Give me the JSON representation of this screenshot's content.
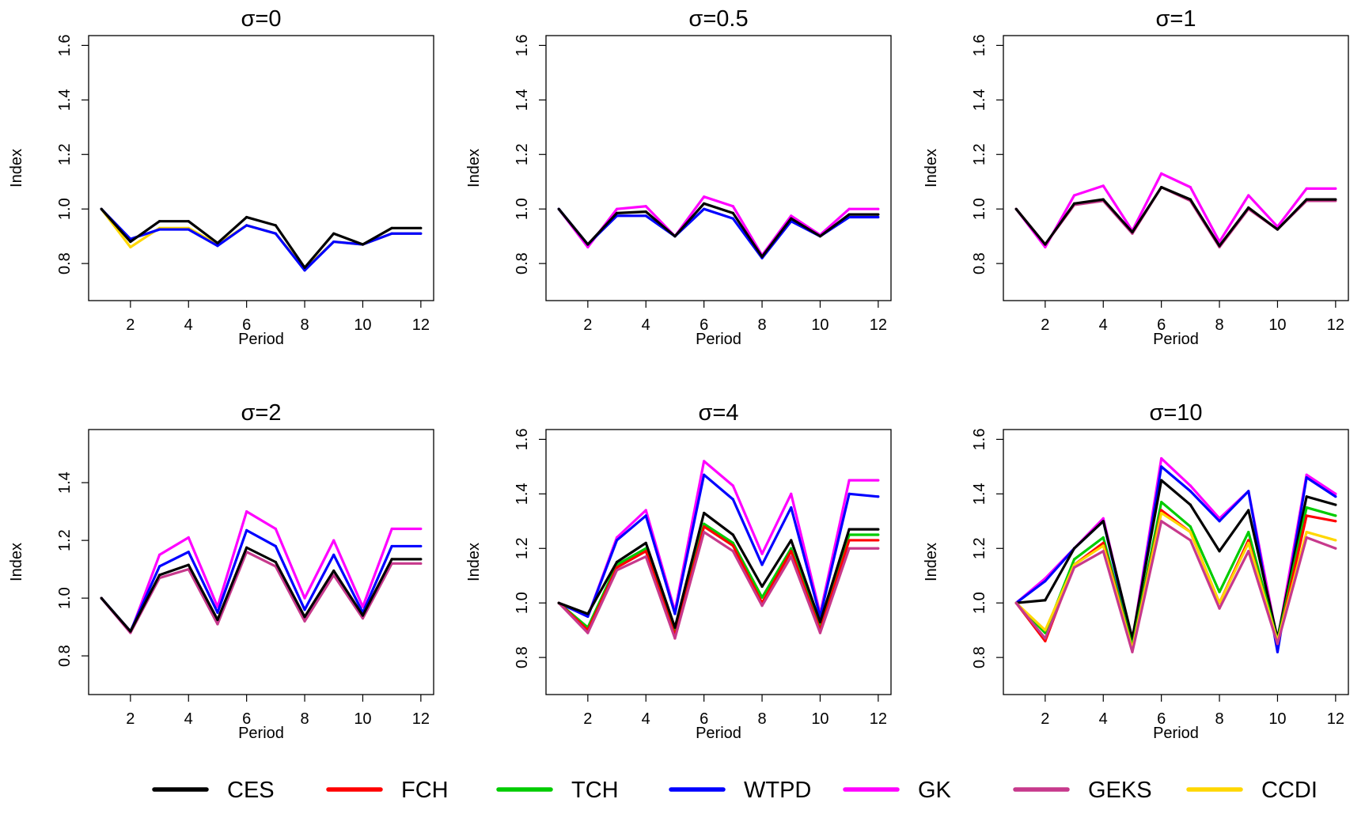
{
  "legend": {
    "placement": "bottom",
    "entries": [
      {
        "label": "CES",
        "color": "#000000"
      },
      {
        "label": "FCH",
        "color": "#ff0000"
      },
      {
        "label": "TCH",
        "color": "#00cc00"
      },
      {
        "label": "WTPD",
        "color": "#0000ff"
      },
      {
        "label": "GK",
        "color": "#ff00ff"
      },
      {
        "label": "GEKS",
        "color": "#c7398c"
      },
      {
        "label": "CCDI",
        "color": "#ffd700"
      }
    ]
  },
  "chart_data": [
    {
      "type": "line",
      "title": "σ=0",
      "xlabel": "Period",
      "ylabel": "Index",
      "xlim": [
        1,
        12
      ],
      "ylim": [
        0.7,
        1.6
      ],
      "grid": false,
      "xticks": [
        2,
        4,
        6,
        8,
        10,
        12
      ],
      "yticks": [
        0.8,
        1.0,
        1.2,
        1.4,
        1.6
      ],
      "ytick_labels": [
        "0.8",
        "1.0",
        "1.2",
        "1.4",
        "1.6"
      ],
      "x": [
        1,
        2,
        3,
        4,
        5,
        6,
        7,
        8,
        9,
        10,
        11,
        12
      ],
      "series": [
        {
          "name": "CCDI",
          "color": "#ffd700",
          "values": [
            1.0,
            0.86,
            0.93,
            0.93,
            0.87,
            0.94,
            0.91,
            0.78,
            0.88,
            0.87,
            0.91,
            0.91
          ]
        },
        {
          "name": "WTPD",
          "color": "#0000ff",
          "values": [
            1.0,
            0.89,
            0.925,
            0.925,
            0.865,
            0.94,
            0.91,
            0.775,
            0.88,
            0.87,
            0.91,
            0.91
          ]
        },
        {
          "name": "CES",
          "color": "#000000",
          "values": [
            1.0,
            0.88,
            0.955,
            0.955,
            0.875,
            0.97,
            0.94,
            0.785,
            0.91,
            0.87,
            0.93,
            0.93
          ]
        }
      ]
    },
    {
      "type": "line",
      "title": "σ=0.5",
      "xlabel": "Period",
      "ylabel": "Index",
      "xlim": [
        1,
        12
      ],
      "ylim": [
        0.7,
        1.6
      ],
      "grid": false,
      "xticks": [
        2,
        4,
        6,
        8,
        10,
        12
      ],
      "yticks": [
        0.8,
        1.0,
        1.2,
        1.4,
        1.6
      ],
      "ytick_labels": [
        "0.8",
        "1.0",
        "1.2",
        "1.4",
        "1.6"
      ],
      "x": [
        1,
        2,
        3,
        4,
        5,
        6,
        7,
        8,
        9,
        10,
        11,
        12
      ],
      "series": [
        {
          "name": "GK",
          "color": "#ff00ff",
          "values": [
            1.0,
            0.86,
            1.0,
            1.01,
            0.9,
            1.045,
            1.01,
            0.83,
            0.975,
            0.905,
            1.0,
            1.0
          ]
        },
        {
          "name": "WTPD",
          "color": "#0000ff",
          "values": [
            1.0,
            0.87,
            0.975,
            0.975,
            0.9,
            1.0,
            0.965,
            0.82,
            0.955,
            0.9,
            0.97,
            0.97
          ]
        },
        {
          "name": "CES",
          "color": "#000000",
          "values": [
            1.0,
            0.87,
            0.985,
            0.99,
            0.9,
            1.02,
            0.985,
            0.825,
            0.965,
            0.9,
            0.98,
            0.98
          ]
        }
      ]
    },
    {
      "type": "line",
      "title": "σ=1",
      "xlabel": "Period",
      "ylabel": "Index",
      "xlim": [
        1,
        12
      ],
      "ylim": [
        0.7,
        1.6
      ],
      "grid": false,
      "xticks": [
        2,
        4,
        6,
        8,
        10,
        12
      ],
      "yticks": [
        0.8,
        1.0,
        1.2,
        1.4,
        1.6
      ],
      "ytick_labels": [
        "0.8",
        "1.0",
        "1.2",
        "1.4",
        "1.6"
      ],
      "x": [
        1,
        2,
        3,
        4,
        5,
        6,
        7,
        8,
        9,
        10,
        11,
        12
      ],
      "series": [
        {
          "name": "GK",
          "color": "#ff00ff",
          "values": [
            1.0,
            0.86,
            1.05,
            1.085,
            0.92,
            1.13,
            1.08,
            0.88,
            1.05,
            0.935,
            1.075,
            1.075
          ]
        },
        {
          "name": "GEKS",
          "color": "#c7398c",
          "values": [
            1.0,
            0.87,
            1.015,
            1.03,
            0.91,
            1.08,
            1.03,
            0.86,
            1.0,
            0.925,
            1.03,
            1.03
          ]
        },
        {
          "name": "CES",
          "color": "#000000",
          "values": [
            1.0,
            0.87,
            1.02,
            1.035,
            0.915,
            1.08,
            1.035,
            0.865,
            1.005,
            0.925,
            1.035,
            1.035
          ]
        }
      ]
    },
    {
      "type": "line",
      "title": "σ=2",
      "xlabel": "Period",
      "ylabel": "Index",
      "xlim": [
        1,
        12
      ],
      "ylim": [
        0.7,
        1.55
      ],
      "grid": false,
      "xticks": [
        2,
        4,
        6,
        8,
        10,
        12
      ],
      "yticks": [
        0.8,
        1.0,
        1.2,
        1.4
      ],
      "ytick_labels": [
        "0.8",
        "1.0",
        "1.2",
        "1.4"
      ],
      "x": [
        1,
        2,
        3,
        4,
        5,
        6,
        7,
        8,
        9,
        10,
        11,
        12
      ],
      "series": [
        {
          "name": "GK",
          "color": "#ff00ff",
          "values": [
            1.0,
            0.88,
            1.15,
            1.21,
            0.97,
            1.3,
            1.24,
            1.0,
            1.2,
            0.97,
            1.24,
            1.24
          ]
        },
        {
          "name": "WTPD",
          "color": "#0000ff",
          "values": [
            1.0,
            0.885,
            1.11,
            1.16,
            0.95,
            1.235,
            1.18,
            0.96,
            1.15,
            0.95,
            1.18,
            1.18
          ]
        },
        {
          "name": "GEKS",
          "color": "#c7398c",
          "values": [
            1.0,
            0.88,
            1.07,
            1.1,
            0.91,
            1.16,
            1.11,
            0.92,
            1.08,
            0.93,
            1.12,
            1.12
          ]
        },
        {
          "name": "CES",
          "color": "#000000",
          "values": [
            1.0,
            0.885,
            1.08,
            1.115,
            0.925,
            1.175,
            1.125,
            0.935,
            1.095,
            0.94,
            1.135,
            1.135
          ]
        }
      ]
    },
    {
      "type": "line",
      "title": "σ=4",
      "xlabel": "Period",
      "ylabel": "Index",
      "xlim": [
        1,
        12
      ],
      "ylim": [
        0.7,
        1.6
      ],
      "grid": false,
      "xticks": [
        2,
        4,
        6,
        8,
        10,
        12
      ],
      "yticks": [
        0.8,
        1.0,
        1.2,
        1.4,
        1.6
      ],
      "ytick_labels": [
        "0.8",
        "1.0",
        "1.2",
        "1.4",
        "1.6"
      ],
      "x": [
        1,
        2,
        3,
        4,
        5,
        6,
        7,
        8,
        9,
        10,
        11,
        12
      ],
      "series": [
        {
          "name": "GK",
          "color": "#ff00ff",
          "values": [
            1.0,
            0.95,
            1.24,
            1.34,
            0.97,
            1.52,
            1.43,
            1.18,
            1.4,
            0.96,
            1.45,
            1.45
          ]
        },
        {
          "name": "WTPD",
          "color": "#0000ff",
          "values": [
            1.0,
            0.95,
            1.23,
            1.32,
            0.96,
            1.47,
            1.38,
            1.14,
            1.35,
            0.95,
            1.4,
            1.39
          ]
        },
        {
          "name": "TCH",
          "color": "#00cc00",
          "values": [
            1.0,
            0.91,
            1.14,
            1.2,
            0.89,
            1.29,
            1.22,
            1.02,
            1.2,
            0.91,
            1.25,
            1.25
          ]
        },
        {
          "name": "FCH",
          "color": "#ff0000",
          "values": [
            1.0,
            0.9,
            1.13,
            1.19,
            0.88,
            1.28,
            1.21,
            1.0,
            1.19,
            0.9,
            1.23,
            1.23
          ]
        },
        {
          "name": "GEKS",
          "color": "#c7398c",
          "values": [
            1.0,
            0.89,
            1.12,
            1.17,
            0.87,
            1.26,
            1.19,
            0.99,
            1.17,
            0.89,
            1.2,
            1.2
          ]
        },
        {
          "name": "CES",
          "color": "#000000",
          "values": [
            1.0,
            0.96,
            1.15,
            1.22,
            0.91,
            1.33,
            1.25,
            1.06,
            1.23,
            0.93,
            1.27,
            1.27
          ]
        }
      ]
    },
    {
      "type": "line",
      "title": "σ=10",
      "xlabel": "Period",
      "ylabel": "Index",
      "xlim": [
        1,
        12
      ],
      "ylim": [
        0.7,
        1.6
      ],
      "grid": false,
      "xticks": [
        2,
        4,
        6,
        8,
        10,
        12
      ],
      "yticks": [
        0.8,
        1.0,
        1.2,
        1.4,
        1.6
      ],
      "ytick_labels": [
        "0.8",
        "1.0",
        "1.2",
        "1.4",
        "1.6"
      ],
      "x": [
        1,
        2,
        3,
        4,
        5,
        6,
        7,
        8,
        9,
        10,
        11,
        12
      ],
      "series": [
        {
          "name": "GK",
          "color": "#ff00ff",
          "values": [
            1.0,
            1.09,
            1.2,
            1.31,
            0.86,
            1.53,
            1.43,
            1.31,
            1.41,
            0.86,
            1.47,
            1.4
          ]
        },
        {
          "name": "WTPD",
          "color": "#0000ff",
          "values": [
            1.0,
            1.08,
            1.2,
            1.3,
            0.85,
            1.5,
            1.41,
            1.3,
            1.41,
            0.82,
            1.46,
            1.39
          ]
        },
        {
          "name": "CES",
          "color": "#000000",
          "values": [
            1.0,
            1.01,
            1.2,
            1.3,
            0.87,
            1.45,
            1.36,
            1.19,
            1.34,
            0.87,
            1.39,
            1.36
          ]
        },
        {
          "name": "TCH",
          "color": "#00cc00",
          "values": [
            1.0,
            0.89,
            1.16,
            1.24,
            0.84,
            1.37,
            1.28,
            1.04,
            1.26,
            0.86,
            1.35,
            1.32
          ]
        },
        {
          "name": "FCH",
          "color": "#ff0000",
          "values": [
            1.0,
            0.86,
            1.14,
            1.22,
            0.83,
            1.34,
            1.26,
            1.0,
            1.23,
            0.85,
            1.32,
            1.3
          ]
        },
        {
          "name": "CCDI",
          "color": "#ffd700",
          "values": [
            1.0,
            0.9,
            1.14,
            1.21,
            0.83,
            1.33,
            1.26,
            1.0,
            1.22,
            0.86,
            1.26,
            1.23
          ]
        },
        {
          "name": "GEKS",
          "color": "#c7398c",
          "values": [
            1.0,
            0.87,
            1.13,
            1.19,
            0.82,
            1.3,
            1.23,
            0.98,
            1.19,
            0.85,
            1.24,
            1.2
          ]
        }
      ]
    }
  ]
}
